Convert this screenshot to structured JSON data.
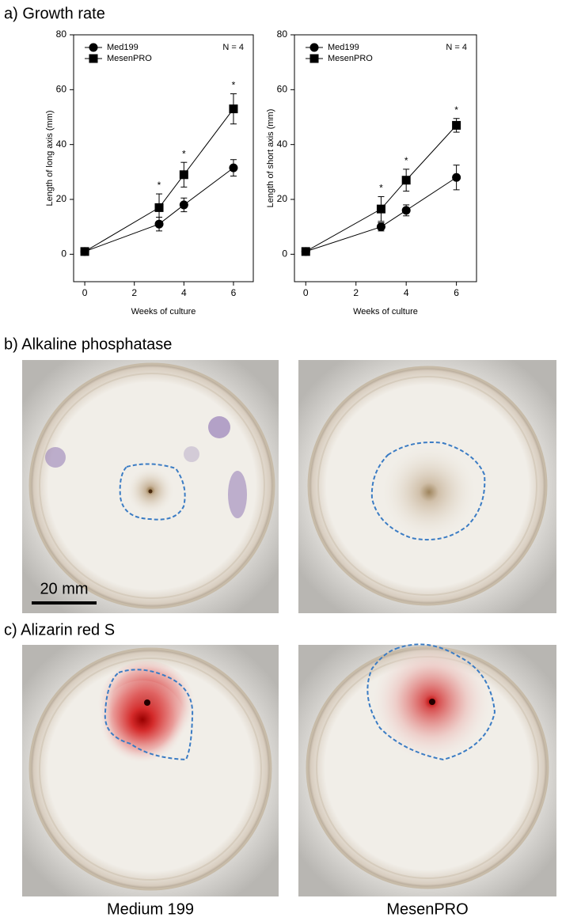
{
  "panel_labels": [
    "a) Growth rate",
    "b) Alkaline phosphatase",
    "c) Alizarin red S"
  ],
  "scale_bar": "20 mm",
  "captions": [
    "Medium 199",
    "MesenPRO"
  ],
  "chart_data": [
    {
      "type": "line",
      "annotation": "N = 4",
      "xlabel": "Weeks of culture",
      "ylabel": "Length of long axis (mm)",
      "x": [
        0,
        3,
        4,
        6
      ],
      "xlim": [
        -0.45,
        6.8
      ],
      "xticks": [
        0,
        2,
        4,
        6
      ],
      "ylim": [
        -10,
        80
      ],
      "yticks": [
        0,
        20,
        40,
        60,
        80
      ],
      "significance": [
        null,
        "*",
        "*",
        "*"
      ],
      "legend": "upper left",
      "series": [
        {
          "name": "Med199",
          "color": "#000000",
          "marker": "circle",
          "values": [
            1,
            11,
            18,
            31.5
          ],
          "errors": [
            0.5,
            2.5,
            2.5,
            3
          ]
        },
        {
          "name": "MesenPRO",
          "color": "#000000",
          "marker": "square",
          "values": [
            1,
            17,
            29,
            53
          ],
          "errors": [
            0.5,
            5,
            4.5,
            5.5
          ]
        }
      ]
    },
    {
      "type": "line",
      "annotation": "N = 4",
      "xlabel": "Weeks of culture",
      "ylabel": "Length of short axis (mm)",
      "x": [
        0,
        3,
        4,
        6
      ],
      "xlim": [
        -0.45,
        6.8
      ],
      "xticks": [
        0,
        2,
        4,
        6
      ],
      "ylim": [
        -10,
        80
      ],
      "yticks": [
        0,
        20,
        40,
        60,
        80
      ],
      "significance": [
        null,
        "*",
        "*",
        "*"
      ],
      "legend": "upper left",
      "series": [
        {
          "name": "Med199",
          "color": "#000000",
          "marker": "circle",
          "values": [
            1,
            10,
            16,
            28
          ],
          "errors": [
            0.5,
            1.5,
            2,
            4.5
          ]
        },
        {
          "name": "MesenPRO",
          "color": "#000000",
          "marker": "square",
          "values": [
            1,
            16.5,
            27,
            47
          ],
          "errors": [
            0.5,
            4.5,
            4,
            2.5
          ]
        }
      ]
    }
  ]
}
